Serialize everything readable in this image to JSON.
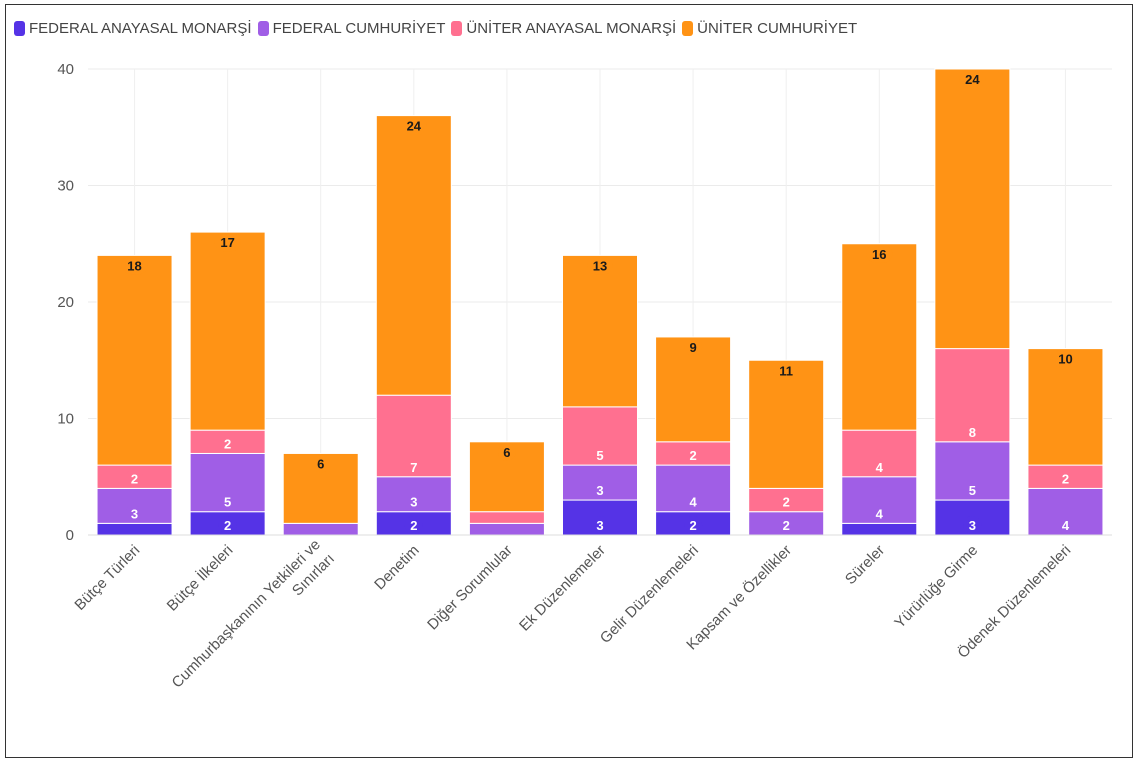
{
  "chart_data": {
    "type": "bar",
    "stacked": true,
    "categories": [
      "Bütçe Türleri",
      "Bütçe İlkeleri",
      "Cumhurbaşkanının Yetkileri ve Sınırları",
      "Denetim",
      "Diğer Sorumlular",
      "Ek Düzenlemeler",
      "Gelir Düzenlemeleri",
      "Kapsam ve Özellikler",
      "Süreler",
      "Yürürlüğe Girme",
      "Ödenek Düzenlemeleri"
    ],
    "category_lines": [
      [
        "Bütçe Türleri"
      ],
      [
        "Bütçe İlkeleri"
      ],
      [
        "Cumhurbaşkanının Yetkileri ve",
        "Sınırları"
      ],
      [
        "Denetim"
      ],
      [
        "Diğer Sorumlular"
      ],
      [
        "Ek Düzenlemeler"
      ],
      [
        "Gelir Düzenlemeleri"
      ],
      [
        "Kapsam ve Özellikler"
      ],
      [
        "Süreler"
      ],
      [
        "Yürürlüğe Girme"
      ],
      [
        "Ödenek Düzenlemeleri"
      ]
    ],
    "series": [
      {
        "name": "FEDERAL ANAYASAL MONARŞİ",
        "color": "#5533e6",
        "values": [
          1,
          2,
          0,
          2,
          0,
          3,
          2,
          0,
          1,
          3,
          0
        ]
      },
      {
        "name": "FEDERAL CUMHURİYET",
        "color": "#a05ee6",
        "values": [
          3,
          5,
          1,
          3,
          1,
          3,
          4,
          2,
          4,
          5,
          4
        ]
      },
      {
        "name": "ÜNİTER ANAYASAL MONARŞİ",
        "color": "#ff7090",
        "values": [
          2,
          2,
          0,
          7,
          1,
          5,
          2,
          2,
          4,
          8,
          2
        ]
      },
      {
        "name": "ÜNİTER CUMHURİYET",
        "color": "#ff9315",
        "values": [
          18,
          17,
          6,
          24,
          6,
          13,
          9,
          11,
          16,
          24,
          10
        ]
      }
    ],
    "ylim": [
      0,
      40
    ],
    "yticks": [
      "0",
      "10",
      "20",
      "30",
      "40"
    ],
    "grid": true,
    "legend": "top-left",
    "xlabel": "",
    "ylabel": ""
  }
}
